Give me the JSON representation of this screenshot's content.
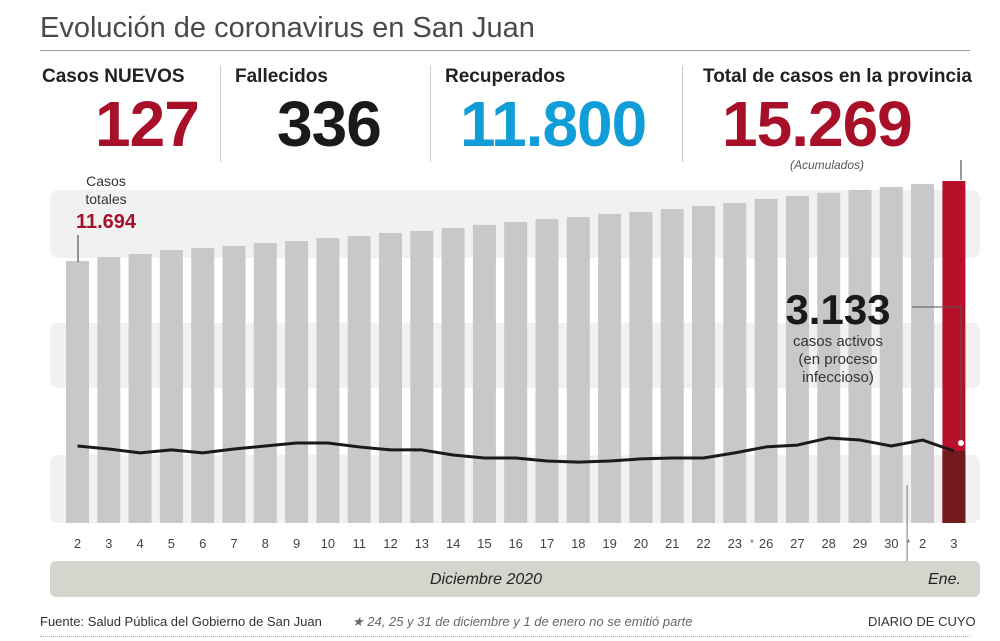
{
  "title": "Evolución de coronavirus en San Juan",
  "stats": {
    "nuevos": {
      "label": "Casos NUEVOS",
      "value": "127",
      "color": "#a8102a"
    },
    "fallecidos": {
      "label": "Fallecidos",
      "value": "336",
      "color": "#1a1a1a"
    },
    "recuperados": {
      "label": "Recuperados",
      "value": "11.800",
      "color": "#119ed8"
    },
    "total": {
      "label": "Total de casos en la provincia",
      "value": "15.269",
      "note": "(Acumulados)",
      "color": "#a8102a"
    }
  },
  "chart_data": {
    "type": "bar",
    "categories": [
      "2",
      "3",
      "4",
      "5",
      "6",
      "7",
      "8",
      "9",
      "10",
      "11",
      "12",
      "13",
      "14",
      "15",
      "16",
      "17",
      "18",
      "19",
      "20",
      "21",
      "22",
      "23",
      "26",
      "27",
      "28",
      "29",
      "30",
      "2",
      "3"
    ],
    "series": [
      {
        "name": "Casos totales",
        "values": [
          11694,
          11870,
          12010,
          12190,
          12280,
          12370,
          12500,
          12590,
          12720,
          12810,
          12950,
          13040,
          13170,
          13310,
          13440,
          13570,
          13660,
          13800,
          13890,
          14020,
          14160,
          14290,
          14470,
          14600,
          14740,
          14870,
          15000,
          15140,
          15269
        ]
      },
      {
        "name": "casos activos",
        "type": "line",
        "values": [
          3350,
          3220,
          3050,
          3180,
          3050,
          3220,
          3350,
          3480,
          3480,
          3310,
          3180,
          3180,
          2960,
          2830,
          2830,
          2700,
          2650,
          2700,
          2790,
          2830,
          2830,
          3050,
          3310,
          3390,
          3700,
          3610,
          3350,
          3610,
          3133
        ]
      }
    ],
    "annotations": {
      "first_label": "Casos totales",
      "first_value": "11.694",
      "active_value": "3.133",
      "active_l1": "casos activos",
      "active_l2": "(en proceso",
      "active_l3": "infeccioso)"
    },
    "xgroups": {
      "dec": "Diciembre 2020",
      "jan": "Ene."
    },
    "ylim": [
      0,
      15500
    ],
    "colors": {
      "bar": "#c8c8cb",
      "highlight": "#b8102a",
      "highlight_dark": "#731a1f",
      "line": "#1a1a1a",
      "band": "#f1f1f1"
    }
  },
  "footer": {
    "source": "Fuente: Salud Pública del Gobierno de San Juan",
    "note": "24, 25 y 31 de diciembre y 1 de enero no se emitió parte",
    "brand": "DIARIO DE CUYO"
  }
}
